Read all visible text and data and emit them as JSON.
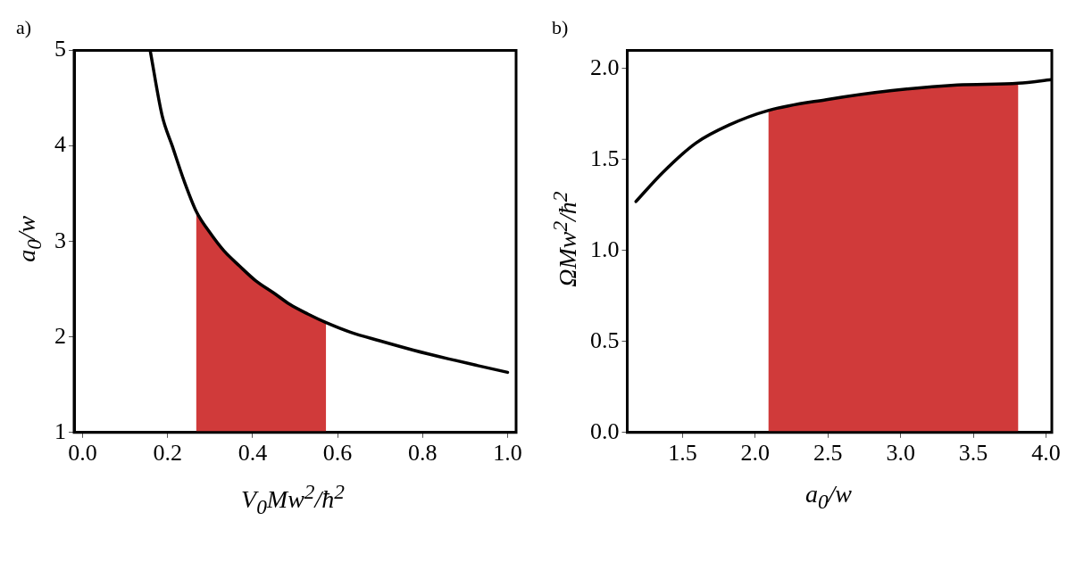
{
  "chart_data": [
    {
      "type": "line",
      "annotations": [
        "a)"
      ],
      "xlabel": "V$_{0}$Mw$^{2}$/ħ$^{2}$",
      "ylabel": "a$_{0}$/w",
      "xlim": [
        -0.02,
        1.02
      ],
      "ylim": [
        1,
        5
      ],
      "xticks": [
        {
          "value": 0,
          "label": "0.0"
        },
        {
          "value": 0.2,
          "label": "0.2"
        },
        {
          "value": 0.4,
          "label": "0.4"
        },
        {
          "value": 0.6,
          "label": "0.6"
        },
        {
          "value": 0.8,
          "label": "0.8"
        },
        {
          "value": 1,
          "label": "1.0"
        }
      ],
      "yticks": [
        1,
        2,
        3,
        4,
        5
      ],
      "grid": false,
      "legend": false,
      "series": [
        {
          "type": "area",
          "color": "#d03a3a",
          "x": [
            0.267,
            0.3,
            0.333,
            0.37,
            0.407,
            0.45,
            0.488,
            0.53,
            0.573
          ],
          "values": [
            3.31,
            3.09,
            2.9,
            2.74,
            2.59,
            2.46,
            2.34,
            2.24,
            2.15
          ]
        },
        {
          "color": "#000000",
          "x": [
            0.159,
            0.187,
            0.211,
            0.24,
            0.268,
            0.3,
            0.333,
            0.37,
            0.407,
            0.45,
            0.488,
            0.53,
            0.573,
            0.63,
            0.699,
            0.78,
            0.862,
            0.93,
            1.0
          ],
          "values": [
            5.0,
            4.32,
            4.0,
            3.62,
            3.31,
            3.09,
            2.9,
            2.74,
            2.59,
            2.46,
            2.34,
            2.24,
            2.15,
            2.05,
            1.96,
            1.86,
            1.77,
            1.7,
            1.63
          ]
        }
      ]
    },
    {
      "type": "line",
      "annotations": [
        "b)"
      ],
      "xlabel": "a$_{0}$/w",
      "ylabel": "ΩMw$^{2}$/ħ$^{2}$",
      "xlim": [
        1.12,
        4.04
      ],
      "ylim": [
        0,
        2.1
      ],
      "xticks": [
        {
          "value": 1.5,
          "label": "1.5"
        },
        {
          "value": 2,
          "label": "2.0"
        },
        {
          "value": 2.5,
          "label": "2.5"
        },
        {
          "value": 3,
          "label": "3.0"
        },
        {
          "value": 3.5,
          "label": "3.5"
        },
        {
          "value": 4,
          "label": "4.0"
        }
      ],
      "yticks": [
        {
          "value": 0,
          "label": "0.0"
        },
        {
          "value": 0.5,
          "label": "0.5"
        },
        {
          "value": 1,
          "label": "1.0"
        },
        {
          "value": 1.5,
          "label": "1.5"
        },
        {
          "value": 2,
          "label": "2.0"
        }
      ],
      "grid": false,
      "legend": false,
      "series": [
        {
          "type": "area",
          "color": "#d03a3a",
          "x": [
            2.09,
            2.49,
            2.94,
            3.39,
            3.81
          ],
          "values": [
            1.77,
            1.83,
            1.88,
            1.91,
            1.92
          ]
        },
        {
          "color": "#000000",
          "x": [
            1.18,
            1.365,
            1.59,
            1.82,
            2.09,
            2.49,
            2.94,
            3.39,
            3.81,
            4.04
          ],
          "values": [
            1.27,
            1.43,
            1.59,
            1.69,
            1.77,
            1.83,
            1.88,
            1.91,
            1.92,
            1.94
          ]
        }
      ]
    }
  ]
}
